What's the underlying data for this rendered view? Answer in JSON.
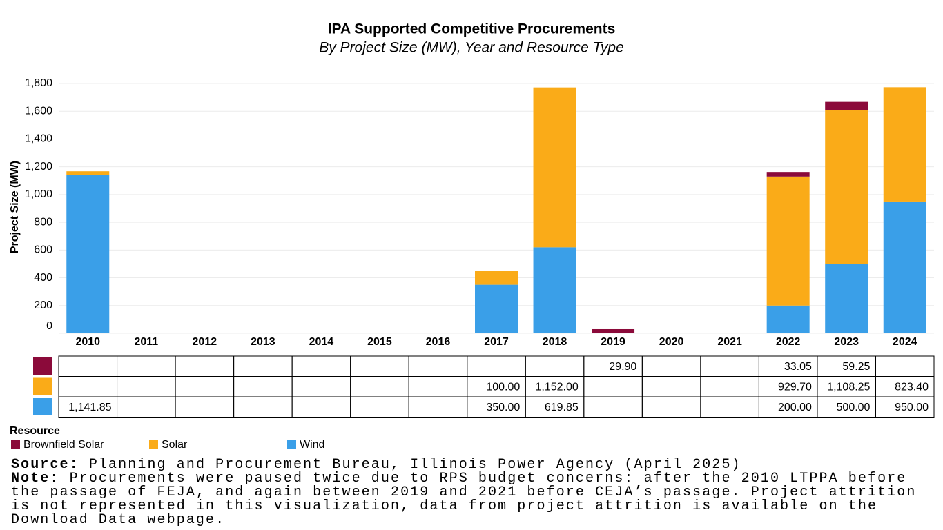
{
  "chart_data": {
    "type": "bar",
    "stacked": true,
    "title": "IPA Supported Competitive Procurements",
    "subtitle": "By Project Size (MW), Year and Resource Type",
    "y_label": "Project Size (MW)",
    "categories": [
      "2010",
      "2011",
      "2012",
      "2013",
      "2014",
      "2015",
      "2016",
      "2017",
      "2018",
      "2019",
      "2020",
      "2021",
      "2022",
      "2023",
      "2024"
    ],
    "series": [
      {
        "name": "Brownfield Solar",
        "color": "#8b0a3a",
        "values": [
          null,
          null,
          null,
          null,
          null,
          null,
          null,
          null,
          null,
          29.9,
          null,
          null,
          33.05,
          59.25,
          null
        ],
        "value_labels": [
          null,
          null,
          null,
          null,
          null,
          null,
          null,
          null,
          null,
          "29.90",
          null,
          null,
          "33.05",
          "59.25",
          null
        ]
      },
      {
        "name": "Solar",
        "color": "#faab18",
        "values": [
          25.76,
          null,
          null,
          null,
          null,
          null,
          null,
          100,
          1152,
          null,
          null,
          null,
          929.7,
          1108.25,
          823.4
        ],
        "value_labels": [
          null,
          null,
          null,
          null,
          null,
          null,
          null,
          "100.00",
          "1,152.00",
          null,
          null,
          null,
          "929.70",
          "1,108.25",
          "823.40"
        ]
      },
      {
        "name": "Wind",
        "color": "#3a9fe8",
        "values": [
          1141.85,
          null,
          null,
          null,
          null,
          null,
          null,
          350,
          619.85,
          null,
          null,
          null,
          200,
          500,
          950
        ],
        "value_labels": [
          "1,141.85",
          null,
          null,
          null,
          null,
          null,
          null,
          "350.00",
          "619.85",
          null,
          null,
          null,
          "200.00",
          "500.00",
          "950.00"
        ]
      }
    ],
    "ylim": [
      0,
      1800
    ],
    "yticks": [
      0,
      200,
      400,
      600,
      800,
      {
        "value": 1000,
        "label": "1,000"
      },
      {
        "value": 1200,
        "label": "1,200"
      },
      {
        "value": 1400,
        "label": "1,400"
      },
      {
        "value": 1600,
        "label": "1,600"
      },
      {
        "value": 1800,
        "label": "1,800"
      }
    ],
    "grid": true,
    "legend_title": "Resource"
  },
  "footer": {
    "source_label": "Source:",
    "source": "Planning and Procurement Bureau, Illinois Power Agency (April 2025)",
    "note_label": "Note:",
    "note": "Procurements were paused twice due to RPS budget concerns: after the 2010 LTPPA before the passage of FEJA, and again between 2019 and 2021 before CEJA’s passage. Project attrition is not represented in this visualization, data from project attrition is available on the Download Data webpage."
  }
}
